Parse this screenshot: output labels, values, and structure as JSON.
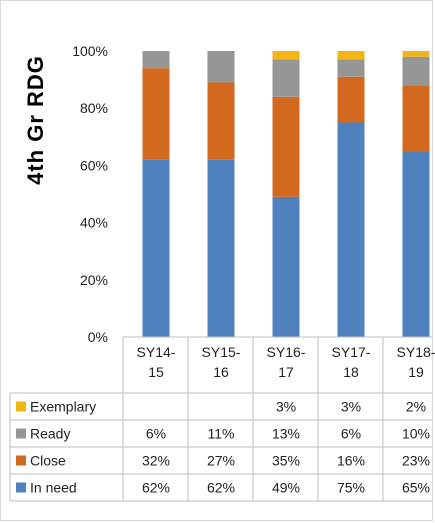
{
  "chart_data": {
    "type": "bar",
    "stacked": true,
    "title": "",
    "ylabel": "4th  Gr  RDG",
    "ylim": [
      0,
      100
    ],
    "y_ticks": [
      "0%",
      "20%",
      "40%",
      "60%",
      "80%",
      "100%"
    ],
    "categories": [
      "SY14-15",
      "SY15-16",
      "SY16-17",
      "SY17-18",
      "SY18-19"
    ],
    "category_lines": [
      [
        "SY14-",
        "15"
      ],
      [
        "SY15-",
        "16"
      ],
      [
        "SY16-",
        "17"
      ],
      [
        "SY17-",
        "18"
      ],
      [
        "SY18-",
        "19"
      ]
    ],
    "series": [
      {
        "name": "In need",
        "color": "#4e81bd",
        "values": [
          62,
          62,
          49,
          75,
          65
        ],
        "labels": [
          "62%",
          "62%",
          "49%",
          "75%",
          "65%"
        ]
      },
      {
        "name": "Close",
        "color": "#d2691e",
        "values": [
          32,
          27,
          35,
          16,
          23
        ],
        "labels": [
          "32%",
          "27%",
          "35%",
          "16%",
          "23%"
        ]
      },
      {
        "name": "Ready",
        "color": "#969696",
        "values": [
          6,
          11,
          13,
          6,
          10
        ],
        "labels": [
          "6%",
          "11%",
          "13%",
          "6%",
          "10%"
        ]
      },
      {
        "name": "Exemplary",
        "color": "#f2b515",
        "values": [
          0,
          0,
          3,
          3,
          2
        ],
        "labels": [
          "",
          "",
          "3%",
          "3%",
          "2%"
        ]
      }
    ],
    "table_row_order": [
      "Exemplary",
      "Ready",
      "Close",
      "In need"
    ],
    "legend": "data-table",
    "grid": false
  }
}
